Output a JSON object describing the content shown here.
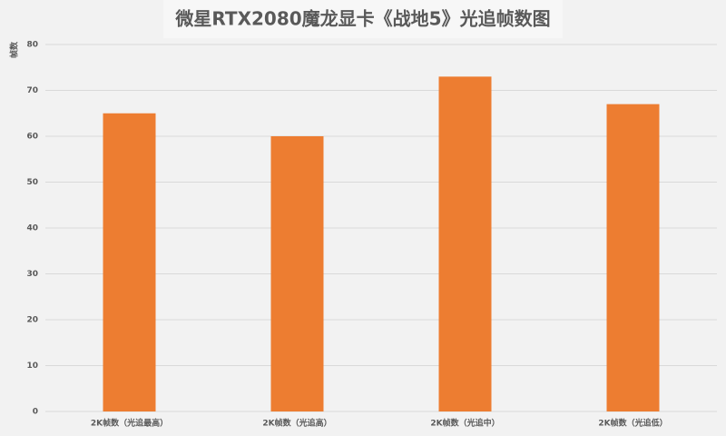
{
  "chart_data": {
    "type": "bar",
    "title": "微星RTX2080魔龙显卡《战地5》光追帧数图",
    "y_label": "帧数",
    "categories": [
      "2K帧数（光追最高）",
      "2K帧数（光追高）",
      "2K帧数（光追中）",
      "2K帧数（光追低）"
    ],
    "values": [
      65,
      60,
      73,
      67
    ],
    "color": "#ed7d31",
    "ylim": [
      0,
      80
    ],
    "yticks": [
      0,
      10,
      20,
      30,
      40,
      50,
      60,
      70,
      80
    ],
    "grid": true
  }
}
